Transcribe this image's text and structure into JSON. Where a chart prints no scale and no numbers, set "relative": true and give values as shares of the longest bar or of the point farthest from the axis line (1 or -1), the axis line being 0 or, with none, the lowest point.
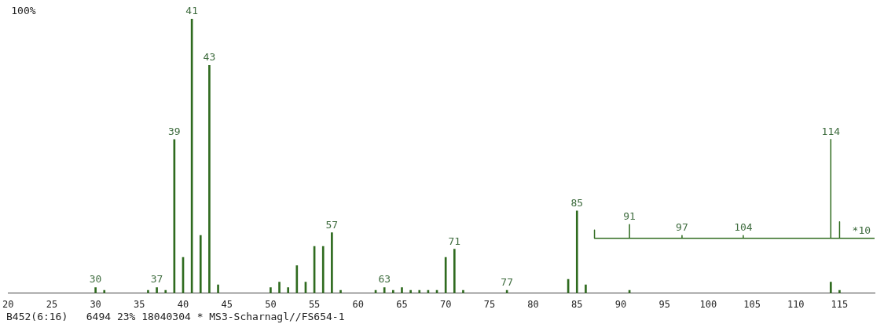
{
  "chart_data": {
    "type": "bar",
    "relative": true,
    "xlim": [
      20,
      119
    ],
    "xticks": [
      20,
      25,
      30,
      35,
      40,
      45,
      50,
      55,
      60,
      65,
      70,
      75,
      80,
      85,
      90,
      95,
      100,
      105,
      110,
      115
    ],
    "grid": false,
    "legend": false,
    "marker": "none",
    "series": [
      {
        "color": "#2f6b1f",
        "x": [
          30,
          31,
          36,
          37,
          38,
          39,
          40,
          41,
          42,
          43,
          44,
          50,
          51,
          52,
          53,
          54,
          55,
          56,
          57,
          58,
          62,
          63,
          64,
          65,
          66,
          67,
          68,
          69,
          70,
          71,
          72,
          77,
          84,
          85,
          86,
          91,
          114,
          115
        ],
        "values": [
          0.02,
          0.01,
          0.01,
          0.02,
          0.01,
          0.56,
          0.13,
          1,
          0.21,
          0.83,
          0.03,
          0.02,
          0.04,
          0.02,
          0.1,
          0.04,
          0.17,
          0.17,
          0.22,
          0.01,
          0.01,
          0.02,
          0.01,
          0.02,
          0.01,
          0.01,
          0.01,
          0.01,
          0.13,
          0.16,
          0.01,
          0.01,
          0.05,
          0.3,
          0.03,
          0.01,
          0.04,
          0.01
        ]
      },
      {
        "type": "line",
        "color": "#2f6b1f",
        "x": [
          87,
          87,
          91,
          91,
          91,
          97,
          97,
          97,
          104,
          104,
          104,
          114,
          114,
          114,
          115,
          115,
          115,
          119
        ],
        "values": [
          0.23,
          0.2,
          0.2,
          0.25,
          0.2,
          0.2,
          0.21,
          0.2,
          0.2,
          0.21,
          0.2,
          0.2,
          0.56,
          0.2,
          0.2,
          0.26,
          0.2,
          0.2
        ]
      }
    ],
    "annotations": [
      "100%",
      "B452(6:16)   6494 23% 18040304 * MS3-Scharnagl//FS654-1",
      {
        "text": "30",
        "x": 30,
        "y": 0.02
      },
      {
        "text": "37",
        "x": 37,
        "y": 0.02
      },
      {
        "text": "39",
        "x": 39,
        "y": 0.56
      },
      {
        "text": "41",
        "x": 41,
        "y": 1
      },
      {
        "text": "43",
        "x": 43,
        "y": 0.83
      },
      {
        "text": "57",
        "x": 57,
        "y": 0.22
      },
      {
        "text": "63",
        "x": 63,
        "y": 0.02
      },
      {
        "text": "71",
        "x": 71,
        "y": 0.16
      },
      {
        "text": "77",
        "x": 77,
        "y": 0.01
      },
      {
        "text": "85",
        "x": 85,
        "y": 0.3
      },
      {
        "text": "91",
        "x": 91,
        "y": 0.25
      },
      {
        "text": "97",
        "x": 97,
        "y": 0.21
      },
      {
        "text": "104",
        "x": 104,
        "y": 0.21
      },
      {
        "text": "114",
        "x": 114,
        "y": 0.56
      },
      {
        "text": "*10",
        "x": 117.5,
        "y": 0.2
      }
    ]
  }
}
